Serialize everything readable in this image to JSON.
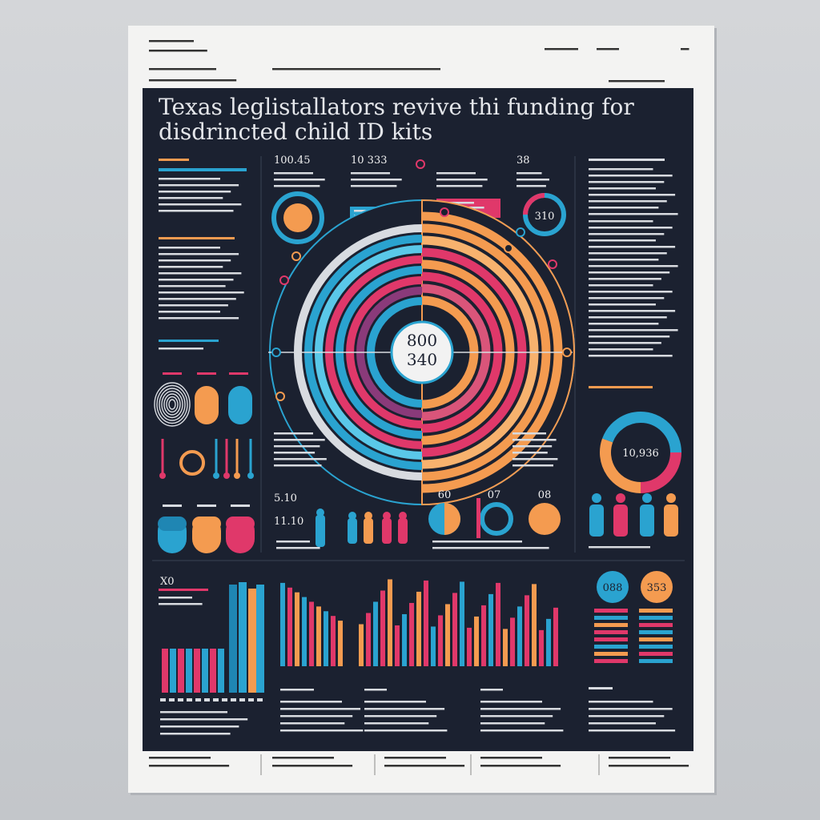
{
  "header": {
    "title_line1": "Texas leglistallators revive thi funding for",
    "title_line2": "disdrincted child ID kits"
  },
  "stats": {
    "top_left": "100.45",
    "top_mid": "10 333",
    "top_small": "38",
    "ring": "310",
    "center_top": "800",
    "center_bottom": "340",
    "donut": "10,936",
    "label_left": "5.10",
    "label_left2": "11.10",
    "circle1": "60",
    "circle2": "07",
    "circle3": "08"
  },
  "bottom": {
    "chart_label": "X0",
    "badge1": "088",
    "badge2": "353"
  }
}
